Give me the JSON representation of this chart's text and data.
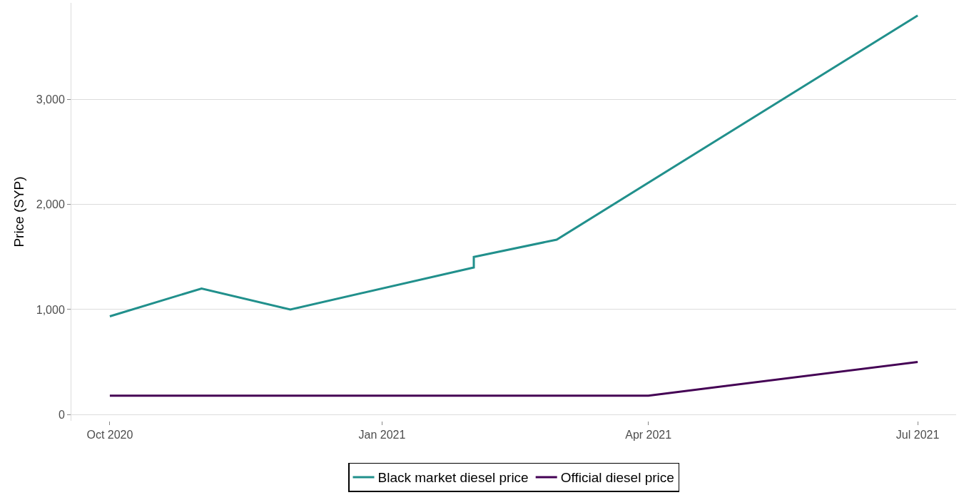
{
  "chart_data": {
    "type": "line",
    "ylabel": "Price (SYP)",
    "series": [
      {
        "name": "Black market diesel price",
        "color": "#21908c",
        "x": [
          "2020-10-01",
          "2020-11-01",
          "2020-12-01",
          "2021-02-01",
          "2021-02-01",
          "2021-03-01",
          "2021-07-01"
        ],
        "values": [
          935,
          1200,
          1000,
          1400,
          1500,
          1665,
          3800
        ]
      },
      {
        "name": "Official diesel price",
        "color": "#440154",
        "x": [
          "2020-10-01",
          "2021-04-01",
          "2021-07-01"
        ],
        "values": [
          180,
          180,
          500
        ]
      }
    ],
    "xlim": [
      "2020-09-18",
      "2021-07-14"
    ],
    "xticks": [
      {
        "value": "2020-10-01",
        "label": "Oct 2020"
      },
      {
        "value": "2021-01-01",
        "label": "Jan 2021"
      },
      {
        "value": "2021-04-01",
        "label": "Apr 2021"
      },
      {
        "value": "2021-07-01",
        "label": "Jul 2021"
      }
    ],
    "yticks": [
      0,
      {
        "value": 1000,
        "label": "1,000"
      },
      {
        "value": 2000,
        "label": "2,000"
      },
      {
        "value": 3000,
        "label": "3,000"
      }
    ],
    "ylim": [
      -60,
      3920
    ],
    "grid": "y",
    "legend": "bottom",
    "marker": "none",
    "line_style": "solid"
  }
}
